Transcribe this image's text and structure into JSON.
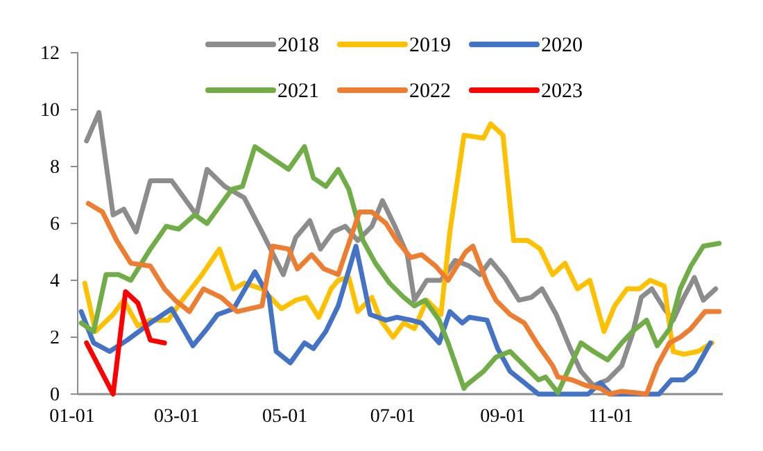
{
  "chart_data": {
    "type": "line",
    "xlim": [
      "--01-01",
      "--12-31"
    ],
    "xticks": [
      {
        "value": "--01-01",
        "label": "01-01"
      },
      {
        "value": "--03-01",
        "label": "03-01"
      },
      {
        "value": "--05-01",
        "label": "05-01"
      },
      {
        "value": "--07-01",
        "label": "07-01"
      },
      {
        "value": "--09-01",
        "label": "09-01"
      },
      {
        "value": "--11-01",
        "label": "11-01"
      }
    ],
    "ylim": [
      0,
      12
    ],
    "yticks": [
      0,
      2,
      4,
      6,
      8,
      10,
      12
    ],
    "grid": false,
    "legend": "top",
    "marker": "none",
    "line_style": "solid",
    "series": [
      {
        "name": "2018",
        "color": "#8c8c8c",
        "x": [
          "--01-06",
          "--01-13",
          "--01-21",
          "--01-27",
          "--02-03",
          "--02-11",
          "--02-23",
          "--03-09",
          "--03-15",
          "--03-25",
          "--04-05",
          "--04-15",
          "--04-23",
          "--04-27",
          "--05-04",
          "--05-12",
          "--05-18",
          "--05-25",
          "--06-01",
          "--06-08",
          "--06-16",
          "--06-22",
          "--06-29",
          "--07-06",
          "--07-10",
          "--07-17",
          "--07-25",
          "--08-02",
          "--08-10",
          "--08-16",
          "--08-22",
          "--08-30",
          "--09-07",
          "--09-14",
          "--09-20",
          "--09-28",
          "--10-06",
          "--10-12",
          "--10-19",
          "--10-27",
          "--11-04",
          "--11-10",
          "--11-15",
          "--11-21",
          "--11-28",
          "--12-03",
          "--12-09",
          "--12-15",
          "--12-20",
          "--12-27"
        ],
        "values": [
          8.9,
          9.9,
          6.3,
          6.5,
          5.7,
          7.5,
          7.5,
          6.3,
          7.9,
          7.3,
          6.9,
          5.7,
          4.7,
          4.2,
          5.5,
          6.1,
          5.1,
          5.7,
          5.9,
          5.4,
          5.9,
          6.8,
          5.9,
          4.9,
          3.3,
          4.0,
          4.0,
          4.7,
          4.5,
          4.2,
          4.7,
          4.1,
          3.3,
          3.4,
          3.7,
          2.8,
          1.6,
          0.8,
          0.3,
          0.5,
          1.0,
          2.1,
          3.4,
          3.7,
          3.0,
          2.6,
          3.4,
          4.1,
          3.3,
          3.7
        ]
      },
      {
        "name": "2019",
        "color": "#ffc000",
        "x": [
          "--01-05",
          "--01-11",
          "--01-21",
          "--01-27",
          "--02-04",
          "--02-11",
          "--02-21",
          "--03-01",
          "--03-11",
          "--03-22",
          "--03-30",
          "--04-05",
          "--04-15",
          "--04-26",
          "--05-04",
          "--05-10",
          "--05-17",
          "--05-24",
          "--05-28",
          "--06-03",
          "--06-08",
          "--06-16",
          "--06-21",
          "--06-28",
          "--07-04",
          "--07-10",
          "--07-17",
          "--07-25",
          "--07-30",
          "--08-07",
          "--08-18",
          "--08-22",
          "--08-29",
          "--09-04",
          "--09-12",
          "--09-19",
          "--09-26",
          "--10-03",
          "--10-10",
          "--10-17",
          "--10-25",
          "--10-31",
          "--11-07",
          "--11-14",
          "--11-20",
          "--11-28",
          "--12-03",
          "--12-09",
          "--12-17",
          "--12-25"
        ],
        "values": [
          3.9,
          2.2,
          2.8,
          3.3,
          2.4,
          2.6,
          2.6,
          3.3,
          4.1,
          5.1,
          3.7,
          3.9,
          3.7,
          3.0,
          3.3,
          3.4,
          2.7,
          3.7,
          4.0,
          4.1,
          2.9,
          3.4,
          2.6,
          2.0,
          2.5,
          2.3,
          3.3,
          2.8,
          5.7,
          9.1,
          9.0,
          9.5,
          9.1,
          5.4,
          5.4,
          5.1,
          4.2,
          4.6,
          3.7,
          4.0,
          2.2,
          3.1,
          3.7,
          3.7,
          4.0,
          3.8,
          1.5,
          1.4,
          1.5,
          1.8
        ]
      },
      {
        "name": "2020",
        "color": "#4472c4",
        "x": [
          "--01-03",
          "--01-10",
          "--01-19",
          "--01-29",
          "--02-11",
          "--02-23",
          "--03-07",
          "--03-15",
          "--03-21",
          "--03-30",
          "--04-11",
          "--04-19",
          "--04-23",
          "--05-01",
          "--05-09",
          "--05-14",
          "--05-21",
          "--05-28",
          "--06-07",
          "--06-15",
          "--06-24",
          "--06-30",
          "--07-08",
          "--07-14",
          "--07-24",
          "--07-30",
          "--08-06",
          "--08-10",
          "--08-20",
          "--08-26",
          "--09-02",
          "--09-10",
          "--09-18",
          "--10-16",
          "--10-23",
          "--10-29",
          "--11-25",
          "--12-02",
          "--12-09",
          "--12-15",
          "--12-24"
        ],
        "values": [
          2.9,
          1.8,
          1.5,
          1.9,
          2.5,
          3.0,
          1.7,
          2.3,
          2.8,
          3.0,
          4.3,
          3.4,
          1.5,
          1.1,
          1.8,
          1.6,
          2.2,
          3.1,
          5.2,
          2.8,
          2.6,
          2.7,
          2.6,
          2.5,
          1.8,
          2.9,
          2.5,
          2.7,
          2.6,
          1.6,
          0.8,
          0.4,
          0,
          0,
          0.4,
          0,
          0,
          0.5,
          0.5,
          0.8,
          1.8
        ]
      },
      {
        "name": "2021",
        "color": "#70ad47",
        "x": [
          "--01-03",
          "--01-10",
          "--01-17",
          "--01-24",
          "--01-31",
          "--02-11",
          "--02-20",
          "--02-27",
          "--03-08",
          "--03-15",
          "--03-29",
          "--04-04",
          "--04-11",
          "--04-30",
          "--05-09",
          "--05-14",
          "--05-21",
          "--05-28",
          "--06-03",
          "--06-11",
          "--06-18",
          "--06-26",
          "--07-04",
          "--07-10",
          "--07-16",
          "--07-24",
          "--07-29",
          "--08-07",
          "--08-08",
          "--08-18",
          "--08-25",
          "--09-02",
          "--09-10",
          "--09-18",
          "--09-22",
          "--09-29",
          "--10-06",
          "--10-12",
          "--10-19",
          "--10-27",
          "--11-04",
          "--11-10",
          "--11-18",
          "--11-24",
          "--12-01",
          "--12-07",
          "--12-13",
          "--12-20",
          "--12-29"
        ],
        "values": [
          2.5,
          2.2,
          4.2,
          4.2,
          4.0,
          5.1,
          5.9,
          5.8,
          6.3,
          6.0,
          7.2,
          7.3,
          8.7,
          7.9,
          8.7,
          7.6,
          7.3,
          7.9,
          7.2,
          5.4,
          4.6,
          3.9,
          3.4,
          3.1,
          3.3,
          2.6,
          1.8,
          0.2,
          0.3,
          0.8,
          1.3,
          1.5,
          1.0,
          0.5,
          0.6,
          0.05,
          1.0,
          1.8,
          1.5,
          1.2,
          1.8,
          2.2,
          2.6,
          1.7,
          2.3,
          3.7,
          4.5,
          5.2,
          5.3
        ]
      },
      {
        "name": "2022",
        "color": "#ed7d31",
        "x": [
          "--01-07",
          "--01-15",
          "--01-23",
          "--01-31",
          "--02-11",
          "--02-19",
          "--02-25",
          "--03-05",
          "--03-13",
          "--03-23",
          "--04-01",
          "--04-15",
          "--04-21",
          "--04-30",
          "--05-05",
          "--05-13",
          "--05-20",
          "--05-28",
          "--06-09",
          "--06-16",
          "--06-24",
          "--06-30",
          "--07-08",
          "--07-14",
          "--07-22",
          "--07-29",
          "--08-06",
          "--08-08",
          "--08-12",
          "--08-20",
          "--08-25",
          "--09-02",
          "--09-10",
          "--09-18",
          "--09-26",
          "--09-29",
          "--10-07",
          "--10-15",
          "--10-23",
          "--10-28",
          "--11-04",
          "--11-12",
          "--11-18",
          "--11-24",
          "--12-01",
          "--12-07",
          "--12-13",
          "--12-21",
          "--12-29"
        ],
        "values": [
          6.7,
          6.4,
          5.4,
          4.6,
          4.5,
          3.7,
          3.3,
          2.9,
          3.7,
          3.4,
          2.9,
          3.1,
          5.2,
          5.1,
          4.4,
          4.9,
          4.4,
          4.2,
          6.4,
          6.4,
          6.0,
          5.4,
          4.8,
          4.9,
          4.5,
          4.0,
          4.8,
          5.0,
          5.2,
          3.9,
          3.3,
          2.8,
          2.5,
          1.7,
          1.0,
          0.6,
          0.5,
          0.3,
          0.2,
          0,
          0.1,
          0.05,
          0,
          1.0,
          1.8,
          2.0,
          2.3,
          2.9,
          2.9
        ]
      },
      {
        "name": "2023",
        "color": "#ff0000",
        "x": [
          "--01-06",
          "--01-21",
          "--01-28",
          "--02-04",
          "--02-11",
          "--02-19"
        ],
        "values": [
          1.8,
          0,
          3.6,
          3.2,
          1.9,
          1.8
        ]
      }
    ]
  }
}
